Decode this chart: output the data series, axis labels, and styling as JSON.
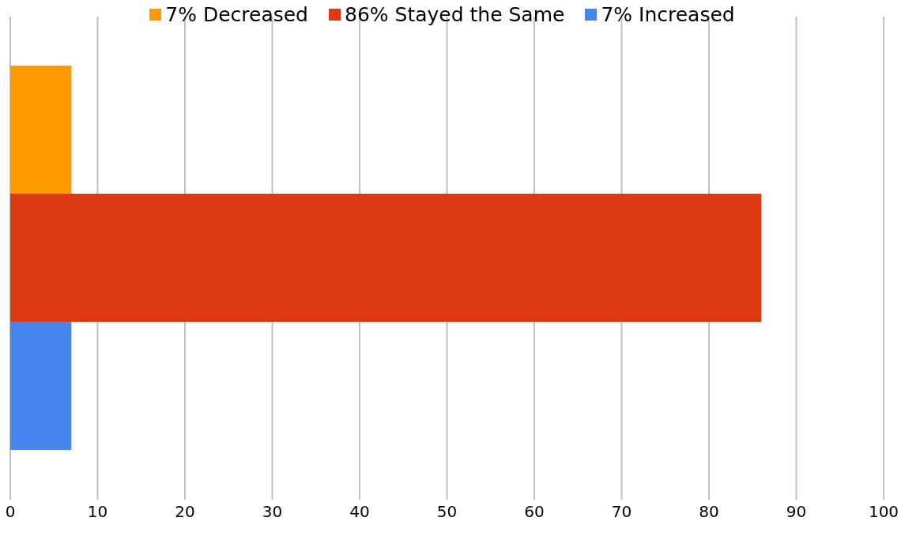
{
  "chart_data": {
    "type": "bar",
    "orientation": "horizontal",
    "categories": [
      null
    ],
    "series": [
      {
        "name": "7% Decreased",
        "color": "#ff9900",
        "values": [
          7
        ]
      },
      {
        "name": "86% Stayed the Same",
        "color": "#dc3912",
        "values": [
          86
        ]
      },
      {
        "name": "7% Increased",
        "color": "#4684ee",
        "values": [
          7
        ]
      }
    ],
    "xlim": [
      0,
      100
    ],
    "xticks": [
      0,
      10,
      20,
      30,
      40,
      50,
      60,
      70,
      80,
      90,
      100
    ],
    "grid": "x",
    "legend": "top"
  }
}
